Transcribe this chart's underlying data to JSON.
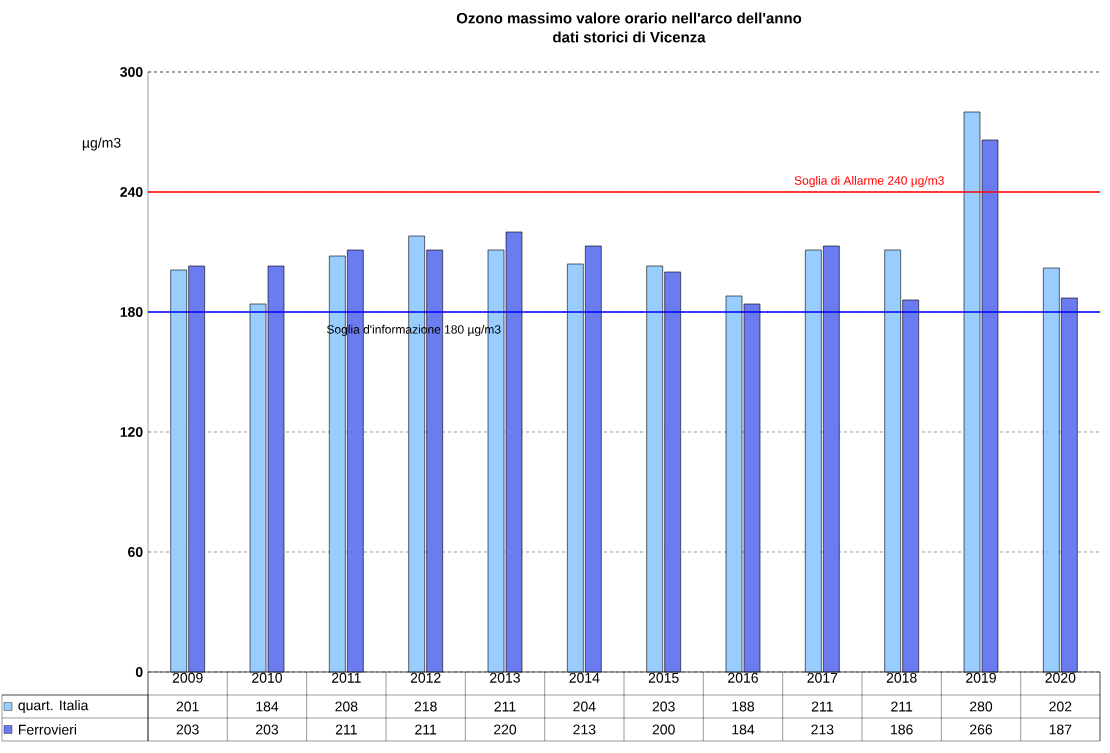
{
  "chart_data": {
    "type": "bar",
    "title": "Ozono massimo valore orario nell'arco dell'anno",
    "subtitle": "dati storici di Vicenza",
    "ylabel": "µg/m3",
    "categories": [
      "2009",
      "2010",
      "2011",
      "2012",
      "2013",
      "2014",
      "2015",
      "2016",
      "2017",
      "2018",
      "2019",
      "2020"
    ],
    "series": [
      {
        "name": "quart. Italia",
        "color": "#99ccff",
        "values": [
          201,
          184,
          208,
          218,
          211,
          204,
          203,
          188,
          211,
          211,
          280,
          202
        ]
      },
      {
        "name": "Ferrovieri",
        "color": "#6b7bf0",
        "values": [
          203,
          203,
          211,
          211,
          220,
          213,
          200,
          184,
          213,
          186,
          266,
          187
        ]
      }
    ],
    "ylim": [
      0,
      300
    ],
    "yticks": [
      0,
      60,
      120,
      180,
      240,
      300
    ],
    "grid": "y",
    "legend": "bottom left",
    "data_labels": true,
    "ref_lines": [
      {
        "axis": "y",
        "value": 240,
        "label": "Soglia di Allarme 240 µg/m3",
        "color": "#ff0000"
      },
      {
        "axis": "y",
        "value": 180,
        "label": "Soglia d'informazione 180 µg/m3",
        "color": "#0000ff"
      }
    ]
  }
}
